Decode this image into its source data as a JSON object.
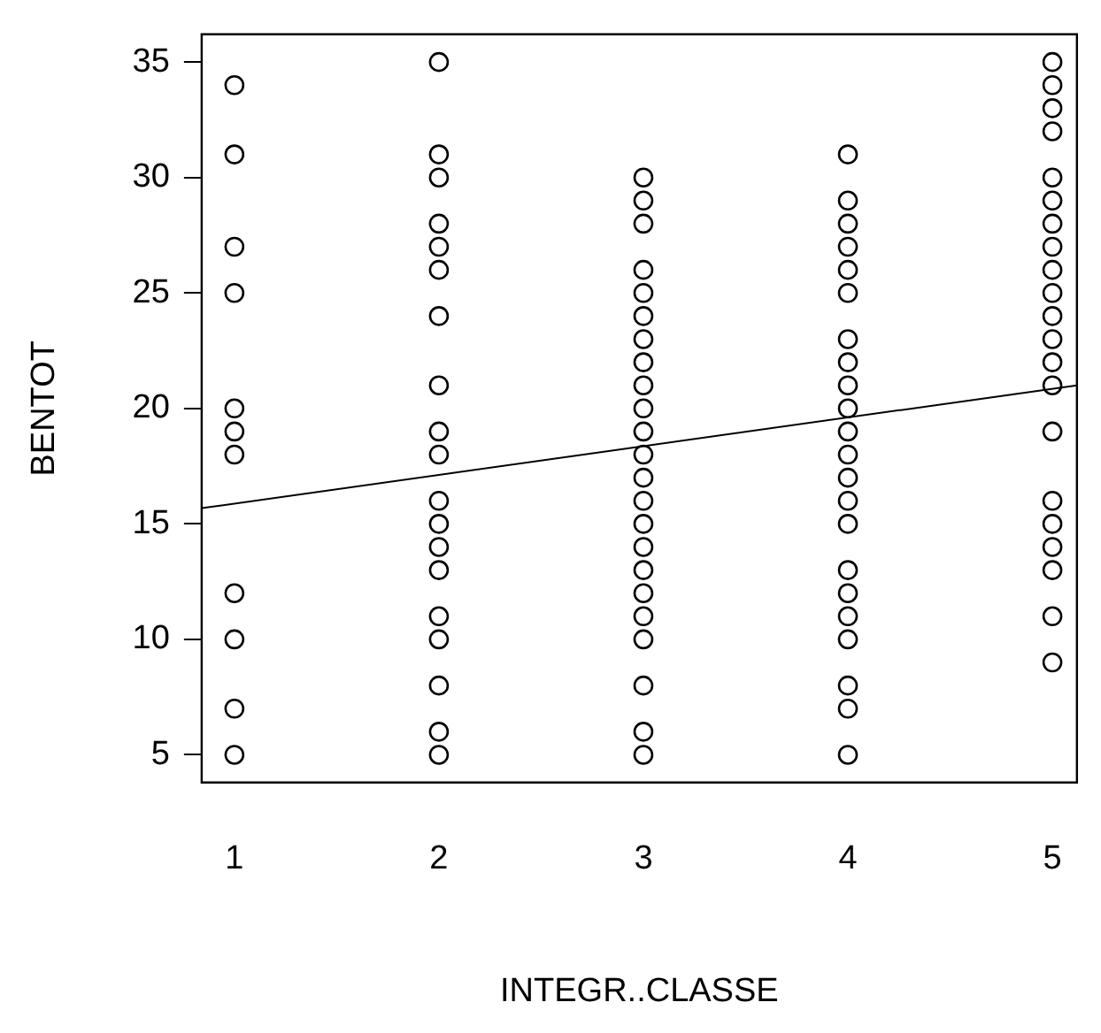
{
  "chart_data": {
    "type": "scatter",
    "xlabel": "INTEGR..CLASSE",
    "ylabel": "BENTOT",
    "xlim": [
      0.84,
      5.12
    ],
    "ylim": [
      3.8,
      36.2
    ],
    "xticks": [
      1,
      2,
      3,
      4,
      5
    ],
    "yticks": [
      5,
      10,
      15,
      20,
      25,
      30,
      35
    ],
    "grid": false,
    "legend": false,
    "marker": "circle",
    "series": [
      {
        "color": "#000000",
        "x": [
          1,
          1,
          1,
          1,
          1,
          1,
          1,
          1,
          1,
          1,
          1,
          2,
          2,
          2,
          2,
          2,
          2,
          2,
          2,
          2,
          2,
          2,
          2,
          2,
          2,
          2,
          2,
          2,
          2,
          2,
          3,
          3,
          3,
          3,
          3,
          3,
          3,
          3,
          3,
          3,
          3,
          3,
          3,
          3,
          3,
          3,
          3,
          3,
          3,
          3,
          3,
          3,
          3,
          4,
          4,
          4,
          4,
          4,
          4,
          4,
          4,
          4,
          4,
          4,
          4,
          4,
          4,
          4,
          4,
          4,
          4,
          4,
          4,
          4,
          4,
          5,
          5,
          5,
          5,
          5,
          5,
          5,
          5,
          5,
          5,
          5,
          5,
          5,
          5,
          5,
          5,
          5,
          5,
          5,
          5,
          5
        ],
        "values": [
          34,
          31,
          27,
          25,
          20,
          19,
          18,
          12,
          10,
          7,
          5,
          35,
          31,
          30,
          28,
          27,
          26,
          24,
          21,
          19,
          18,
          16,
          15,
          14,
          13,
          11,
          10,
          8,
          6,
          5,
          30,
          29,
          28,
          26,
          25,
          24,
          23,
          22,
          21,
          20,
          19,
          18,
          17,
          16,
          15,
          14,
          13,
          12,
          11,
          10,
          8,
          6,
          5,
          31,
          29,
          28,
          27,
          26,
          25,
          23,
          22,
          21,
          20,
          19,
          18,
          17,
          16,
          15,
          13,
          12,
          11,
          10,
          8,
          7,
          5,
          35,
          34,
          33,
          32,
          30,
          29,
          28,
          27,
          26,
          25,
          24,
          23,
          22,
          21,
          19,
          16,
          15,
          14,
          13,
          11,
          9
        ]
      },
      {
        "type": "line",
        "color": "#000000",
        "marker": "none",
        "x": [
          0.84,
          5.12
        ],
        "values": [
          15.68,
          21.0
        ]
      }
    ]
  }
}
